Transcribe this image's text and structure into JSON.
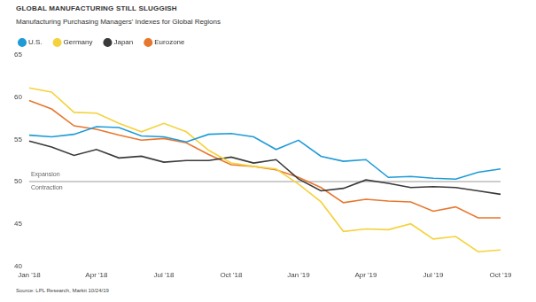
{
  "chart_data": {
    "type": "line",
    "title": "GLOBAL MANUFACTURING STILL SLUGGISH",
    "subtitle": "Manufacturing Purchasing Managers' Indexes for Global Regions",
    "source": "Source: LPL Research, Markit 10/24/19",
    "annotations": [
      "Expansion",
      "Contraction"
    ],
    "hline": 50,
    "categories": [
      "Jan '18",
      null,
      null,
      "Apr '18",
      null,
      null,
      "Jul '18",
      null,
      null,
      "Oct '18",
      null,
      null,
      "Jan '19",
      null,
      null,
      "Apr '19",
      null,
      null,
      "Jul '19",
      null,
      null,
      "Oct '19"
    ],
    "series": [
      {
        "name": "U.S.",
        "color": "#1e9bd7",
        "values": [
          55.5,
          55.3,
          55.6,
          56.5,
          56.4,
          55.4,
          55.3,
          54.7,
          55.6,
          55.7,
          55.3,
          53.8,
          54.9,
          53.0,
          52.4,
          52.6,
          50.5,
          50.6,
          50.4,
          50.3,
          51.1,
          51.5
        ]
      },
      {
        "name": "Germany",
        "color": "#f5d23c",
        "values": [
          61.1,
          60.6,
          58.2,
          58.1,
          56.9,
          55.9,
          56.9,
          55.9,
          53.7,
          52.2,
          51.8,
          51.5,
          49.7,
          47.6,
          44.1,
          44.4,
          44.3,
          45.0,
          43.2,
          43.5,
          41.7,
          41.9
        ]
      },
      {
        "name": "Japan",
        "color": "#3a3a3a",
        "values": [
          54.8,
          54.1,
          53.1,
          53.8,
          52.8,
          53.0,
          52.3,
          52.5,
          52.5,
          52.9,
          52.2,
          52.6,
          50.3,
          48.9,
          49.2,
          50.2,
          49.8,
          49.3,
          49.4,
          49.3,
          48.9,
          48.5
        ]
      },
      {
        "name": "Eurozone",
        "color": "#e8772e",
        "values": [
          59.6,
          58.6,
          56.6,
          56.2,
          55.5,
          54.9,
          55.1,
          54.6,
          53.2,
          52.0,
          51.8,
          51.4,
          50.5,
          49.3,
          47.5,
          47.9,
          47.7,
          47.6,
          46.5,
          47.0,
          45.7,
          45.7
        ]
      }
    ],
    "ylim": [
      40,
      65
    ],
    "yticks": [
      40,
      45,
      50,
      55,
      60,
      65
    ],
    "grid": false,
    "legend": "top-left"
  }
}
